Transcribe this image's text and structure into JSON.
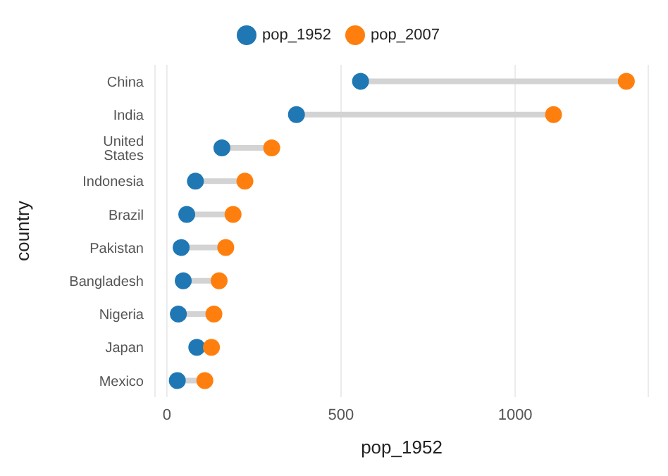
{
  "chart_data": {
    "type": "scatter",
    "orientation": "horizontal",
    "xlabel": "pop_1952",
    "ylabel": "country",
    "categories": [
      "China",
      "India",
      "United States",
      "Indonesia",
      "Brazil",
      "Pakistan",
      "Bangladesh",
      "Nigeria",
      "Japan",
      "Mexico"
    ],
    "series": [
      {
        "name": "pop_1952",
        "color": "#1f77b4",
        "values": [
          556,
          372,
          158,
          82,
          57,
          41,
          47,
          33,
          86,
          30
        ]
      },
      {
        "name": "pop_2007",
        "color": "#ff7f0e",
        "values": [
          1319,
          1110,
          301,
          224,
          190,
          169,
          150,
          135,
          128,
          109
        ]
      }
    ],
    "xlim": [
      -34,
      1382
    ],
    "xticks": [
      0,
      500,
      1000
    ],
    "grid": "x",
    "legend": "top",
    "marker": "circle"
  }
}
